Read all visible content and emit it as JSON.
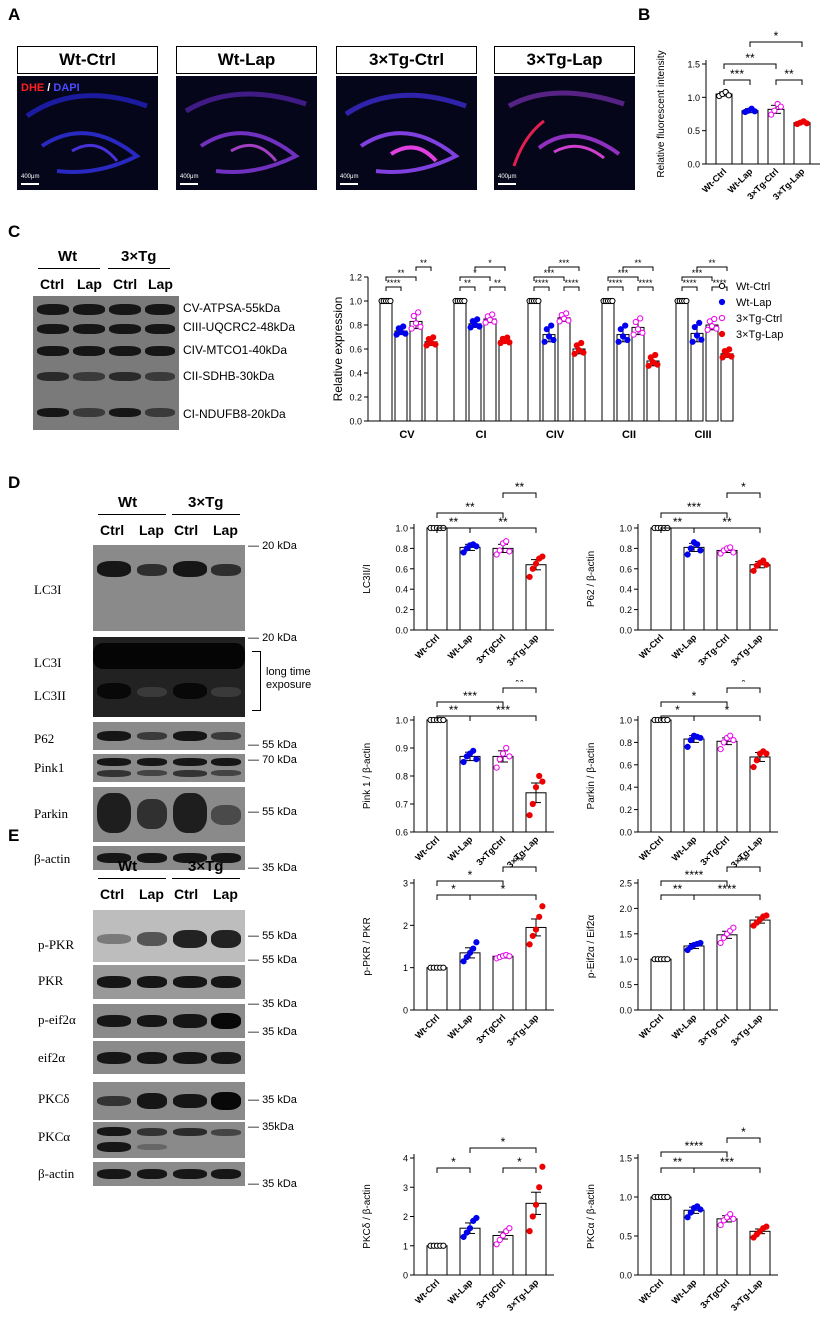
{
  "panel_labels": {
    "A": "A",
    "B": "B",
    "C": "C",
    "D": "D",
    "E": "E"
  },
  "panelA": {
    "titles": [
      "Wt-Ctrl",
      "Wt-Lap",
      "3×Tg-Ctrl",
      "3×Tg-Lap"
    ],
    "stain_dhe": "DHE",
    "stain_sep": " / ",
    "stain_dapi": "DAPI",
    "scale_bar": "400μm"
  },
  "blotC": {
    "groups": [
      "Wt",
      "3×Tg"
    ],
    "lanes": [
      "Ctrl",
      "Lap",
      "Ctrl",
      "Lap"
    ],
    "bands": [
      "CV-ATPSA-55kDa",
      "CIII-UQCRC2-48kDa",
      "CIV-MTCO1-40kDa",
      "CII-SDHB-30kDa",
      "CI-NDUFB8-20kDa"
    ]
  },
  "blotD": {
    "groups": [
      "Wt",
      "3×Tg"
    ],
    "lanes": [
      "Ctrl",
      "Lap",
      "Ctrl",
      "Lap"
    ],
    "rows": [
      "LC3I",
      "LC3I",
      "LC3II",
      "P62",
      "Pink1",
      "Parkin",
      "β-actin"
    ],
    "markers": [
      "20 kDa",
      "20 kDa",
      "55 kDa",
      "70 kDa",
      "55 kDa",
      "35 kDa"
    ],
    "note": "long time exposure"
  },
  "blotE": {
    "groups": [
      "Wt",
      "3×Tg"
    ],
    "lanes": [
      "Ctrl",
      "Lap",
      "Ctrl",
      "Lap"
    ],
    "rows": [
      "p-PKR",
      "PKR",
      "p-eif2α",
      "eif2α",
      "PKCδ",
      "PKCα",
      "β-actin"
    ],
    "markers": [
      "55 kDa",
      "55 kDa",
      "35 kDa",
      "35 kDa",
      "35 kDa",
      "35kDa",
      "35 kDa"
    ]
  },
  "chart_data": [
    {
      "id": "B",
      "type": "bar",
      "categories": [
        "Wt-Ctrl",
        "Wt-Lap",
        "3×Tg-Ctrl",
        "3×Tg-Lap"
      ],
      "values": [
        1.05,
        0.8,
        0.82,
        0.62
      ],
      "errors": [
        0.03,
        0.03,
        0.06,
        0.02
      ],
      "points": [
        [
          1.02,
          1.05,
          1.08,
          1.03
        ],
        [
          0.78,
          0.8,
          0.83,
          0.79
        ],
        [
          0.74,
          0.8,
          0.9,
          0.86
        ],
        [
          0.6,
          0.62,
          0.64,
          0.61
        ]
      ],
      "ylabel": "Relative fluorescent intensity",
      "ylim": [
        0,
        1.5
      ],
      "yticks": [
        0,
        0.5,
        1.0,
        1.5
      ],
      "ytick_labels": [
        "0.0",
        "0.5",
        "1.0",
        "1.5"
      ],
      "sig": [
        {
          "a": 0,
          "b": 1,
          "label": "***"
        },
        {
          "a": 0,
          "b": 2,
          "label": "**"
        },
        {
          "a": 1,
          "b": 3,
          "label": "*"
        },
        {
          "a": 2,
          "b": 3,
          "label": "**"
        }
      ],
      "colors": [
        "#000000",
        "#0000ee",
        "#ee00ee",
        "#ee0000"
      ]
    },
    {
      "id": "C",
      "type": "bar",
      "categories": [
        "CV",
        "CI",
        "CIV",
        "CII",
        "CIII"
      ],
      "series": [
        {
          "name": "Wt-Ctrl",
          "values": [
            1.0,
            1.0,
            1.0,
            1.0,
            1.0
          ],
          "errors": [
            0.0,
            0.0,
            0.0,
            0.0,
            0.0
          ]
        },
        {
          "name": "Wt-Lap",
          "values": [
            0.75,
            0.81,
            0.72,
            0.72,
            0.73
          ],
          "errors": [
            0.03,
            0.03,
            0.06,
            0.06,
            0.07
          ]
        },
        {
          "name": "3×Tg-Ctrl",
          "values": [
            0.83,
            0.85,
            0.86,
            0.78,
            0.8
          ],
          "errors": [
            0.06,
            0.03,
            0.03,
            0.06,
            0.04
          ]
        },
        {
          "name": "3×Tg-Lap",
          "values": [
            0.66,
            0.67,
            0.6,
            0.5,
            0.56
          ],
          "errors": [
            0.03,
            0.02,
            0.04,
            0.04,
            0.03
          ]
        }
      ],
      "ylabel": "Relative expression",
      "ylim": [
        0,
        1.2
      ],
      "yticks": [
        0,
        0.2,
        0.4,
        0.6,
        0.8,
        1.0,
        1.2
      ],
      "ytick_labels": [
        "0.0",
        "0.2",
        "0.4",
        "0.6",
        "0.8",
        "1.0",
        "1.2"
      ],
      "legend": "right",
      "sig": [
        [
          {
            "a": 0,
            "b": 1,
            "label": "****"
          },
          {
            "a": 0,
            "b": 2,
            "label": "**"
          },
          {
            "a": 2,
            "b": 3,
            "label": "**"
          }
        ],
        [
          {
            "a": 0,
            "b": 1,
            "label": "**"
          },
          {
            "a": 0,
            "b": 2,
            "label": "*"
          },
          {
            "a": 1,
            "b": 3,
            "label": "*"
          },
          {
            "a": 2,
            "b": 3,
            "label": "**"
          }
        ],
        [
          {
            "a": 0,
            "b": 1,
            "label": "****"
          },
          {
            "a": 0,
            "b": 2,
            "label": "***"
          },
          {
            "a": 1,
            "b": 3,
            "label": "***"
          },
          {
            "a": 2,
            "b": 3,
            "label": "****"
          }
        ],
        [
          {
            "a": 0,
            "b": 1,
            "label": "****"
          },
          {
            "a": 0,
            "b": 2,
            "label": "***"
          },
          {
            "a": 1,
            "b": 3,
            "label": "**"
          },
          {
            "a": 2,
            "b": 3,
            "label": "****"
          }
        ],
        [
          {
            "a": 0,
            "b": 1,
            "label": "****"
          },
          {
            "a": 0,
            "b": 2,
            "label": "***"
          },
          {
            "a": 1,
            "b": 3,
            "label": "**"
          },
          {
            "a": 2,
            "b": 3,
            "label": "****"
          }
        ]
      ],
      "colors": [
        "#000000",
        "#0000ee",
        "#ee00ee",
        "#ee0000"
      ]
    },
    {
      "id": "D1",
      "type": "bar",
      "categories": [
        "Wt-Ctrl",
        "Wt-Lap",
        "3×TgCtrl",
        "3×Tg-Lap"
      ],
      "values": [
        1.0,
        0.81,
        0.8,
        0.64
      ],
      "errors": [
        0.0,
        0.03,
        0.04,
        0.05
      ],
      "points": [
        [
          1.0,
          1.0,
          1.0,
          1.0,
          1.0
        ],
        [
          0.76,
          0.8,
          0.83,
          0.84,
          0.82
        ],
        [
          0.74,
          0.78,
          0.85,
          0.87,
          0.77
        ],
        [
          0.52,
          0.6,
          0.65,
          0.7,
          0.72
        ]
      ],
      "ylabel": "LC3II/I",
      "ylim": [
        0,
        1.0
      ],
      "yticks": [
        0,
        0.2,
        0.4,
        0.6,
        0.8,
        1.0
      ],
      "ytick_labels": [
        "0.0",
        "0.2",
        "0.4",
        "0.6",
        "0.8",
        "1.0"
      ],
      "sig": [
        {
          "a": 0,
          "b": 1,
          "label": "**"
        },
        {
          "a": 0,
          "b": 2,
          "label": "**"
        },
        {
          "a": 1,
          "b": 3,
          "label": "**"
        },
        {
          "a": 2,
          "b": 3,
          "label": "**"
        }
      ],
      "colors": [
        "#000000",
        "#0000ee",
        "#ee00ee",
        "#ee0000"
      ]
    },
    {
      "id": "D2",
      "type": "bar",
      "categories": [
        "Wt-Ctrl",
        "Wt-Lap",
        "3×Tg-Ctrl",
        "3×Tg-Lap"
      ],
      "values": [
        1.0,
        0.81,
        0.78,
        0.64
      ],
      "errors": [
        0.0,
        0.04,
        0.02,
        0.03
      ],
      "points": [
        [
          1.0,
          1.0,
          1.0,
          1.0,
          1.0
        ],
        [
          0.74,
          0.8,
          0.86,
          0.84,
          0.78
        ],
        [
          0.75,
          0.78,
          0.8,
          0.81,
          0.76
        ],
        [
          0.58,
          0.63,
          0.66,
          0.68,
          0.64
        ]
      ],
      "ylabel": "P62 / β-actin",
      "ylim": [
        0,
        1.0
      ],
      "yticks": [
        0,
        0.2,
        0.4,
        0.6,
        0.8,
        1.0
      ],
      "ytick_labels": [
        "0.0",
        "0.2",
        "0.4",
        "0.6",
        "0.8",
        "1.0"
      ],
      "sig": [
        {
          "a": 0,
          "b": 1,
          "label": "**"
        },
        {
          "a": 0,
          "b": 2,
          "label": "***"
        },
        {
          "a": 1,
          "b": 3,
          "label": "**"
        },
        {
          "a": 2,
          "b": 3,
          "label": "*"
        }
      ],
      "colors": [
        "#000000",
        "#0000ee",
        "#ee00ee",
        "#ee0000"
      ]
    },
    {
      "id": "D3",
      "type": "bar",
      "categories": [
        "Wt-Ctrl",
        "Wt-Lap",
        "3×TgCtrl",
        "3×Tg-Lap"
      ],
      "values": [
        1.0,
        0.87,
        0.87,
        0.74
      ],
      "errors": [
        0.0,
        0.015,
        0.02,
        0.035
      ],
      "points": [
        [
          1.0,
          1.0,
          1.0,
          1.0,
          1.0
        ],
        [
          0.85,
          0.87,
          0.88,
          0.89,
          0.86
        ],
        [
          0.83,
          0.86,
          0.88,
          0.9,
          0.87
        ],
        [
          0.66,
          0.7,
          0.76,
          0.8,
          0.78
        ]
      ],
      "ylabel": "Pink 1 / β-actin",
      "ylim": [
        0.6,
        1.0
      ],
      "yticks": [
        0.6,
        0.7,
        0.8,
        0.9,
        1.0
      ],
      "ytick_labels": [
        "0.6",
        "0.7",
        "0.8",
        "0.9",
        "1.0"
      ],
      "sig": [
        {
          "a": 0,
          "b": 1,
          "label": "**"
        },
        {
          "a": 0,
          "b": 2,
          "label": "***"
        },
        {
          "a": 1,
          "b": 3,
          "label": "***"
        },
        {
          "a": 2,
          "b": 3,
          "label": "**"
        }
      ],
      "colors": [
        "#000000",
        "#0000ee",
        "#ee00ee",
        "#ee0000"
      ]
    },
    {
      "id": "D4",
      "type": "bar",
      "categories": [
        "Wt-Ctrl",
        "Wt-Lap",
        "3×TgCtrl",
        "3×Tg-Lap"
      ],
      "values": [
        1.0,
        0.83,
        0.81,
        0.67
      ],
      "errors": [
        0.0,
        0.03,
        0.03,
        0.04
      ],
      "points": [
        [
          1.0,
          1.0,
          1.0,
          1.0,
          1.0
        ],
        [
          0.76,
          0.82,
          0.86,
          0.85,
          0.84
        ],
        [
          0.74,
          0.8,
          0.84,
          0.86,
          0.82
        ],
        [
          0.58,
          0.64,
          0.7,
          0.72,
          0.7
        ]
      ],
      "ylabel": "Parkin / β-actin",
      "ylim": [
        0,
        1.0
      ],
      "yticks": [
        0,
        0.2,
        0.4,
        0.6,
        0.8,
        1.0
      ],
      "ytick_labels": [
        "0.0",
        "0.2",
        "0.4",
        "0.6",
        "0.8",
        "1.0"
      ],
      "sig": [
        {
          "a": 0,
          "b": 1,
          "label": "*"
        },
        {
          "a": 0,
          "b": 2,
          "label": "*"
        },
        {
          "a": 1,
          "b": 3,
          "label": "*"
        },
        {
          "a": 2,
          "b": 3,
          "label": "*"
        }
      ],
      "colors": [
        "#000000",
        "#0000ee",
        "#ee00ee",
        "#ee0000"
      ]
    },
    {
      "id": "E1",
      "type": "bar",
      "categories": [
        "Wt-Ctrl",
        "Wt-Lap",
        "3×TgCtrl",
        "3×Tg-Lap"
      ],
      "values": [
        1.0,
        1.35,
        1.27,
        1.95
      ],
      "errors": [
        0.0,
        0.12,
        0.04,
        0.2
      ],
      "points": [
        [
          1.0,
          1.0,
          1.0,
          1.0,
          1.0
        ],
        [
          1.15,
          1.25,
          1.35,
          1.45,
          1.6
        ],
        [
          1.22,
          1.25,
          1.28,
          1.3,
          1.27
        ],
        [
          1.55,
          1.75,
          1.9,
          2.2,
          2.45
        ]
      ],
      "ylabel": "p-PKR / PKR",
      "ylim": [
        0,
        3
      ],
      "yticks": [
        0,
        1,
        2,
        3
      ],
      "ytick_labels": [
        "0",
        "1",
        "2",
        "3"
      ],
      "sig": [
        {
          "a": 0,
          "b": 1,
          "label": "*"
        },
        {
          "a": 0,
          "b": 2,
          "label": "*"
        },
        {
          "a": 1,
          "b": 3,
          "label": "*"
        },
        {
          "a": 2,
          "b": 3,
          "label": "**"
        }
      ],
      "colors": [
        "#000000",
        "#0000ee",
        "#ee00ee",
        "#ee0000"
      ]
    },
    {
      "id": "E2",
      "type": "bar",
      "categories": [
        "Wt-Ctrl",
        "Wt-Lap",
        "3×Tg-Ctrl",
        "3×Tg-Lap"
      ],
      "values": [
        1.0,
        1.26,
        1.48,
        1.77
      ],
      "errors": [
        0.0,
        0.05,
        0.07,
        0.06
      ],
      "points": [
        [
          1.0,
          1.0,
          1.0,
          1.0,
          1.0
        ],
        [
          1.18,
          1.24,
          1.28,
          1.3,
          1.32
        ],
        [
          1.32,
          1.42,
          1.5,
          1.56,
          1.62
        ],
        [
          1.66,
          1.72,
          1.78,
          1.84,
          1.86
        ]
      ],
      "ylabel": "p-Eif2α / Eif2α",
      "ylim": [
        0,
        2.5
      ],
      "yticks": [
        0,
        0.5,
        1.0,
        1.5,
        2.0,
        2.5
      ],
      "ytick_labels": [
        "0.0",
        "0.5",
        "1.0",
        "1.5",
        "2.0",
        "2.5"
      ],
      "sig": [
        {
          "a": 0,
          "b": 1,
          "label": "**"
        },
        {
          "a": 0,
          "b": 2,
          "label": "****"
        },
        {
          "a": 1,
          "b": 3,
          "label": "****"
        },
        {
          "a": 2,
          "b": 3,
          "label": "**"
        }
      ],
      "colors": [
        "#000000",
        "#0000ee",
        "#ee00ee",
        "#ee0000"
      ]
    },
    {
      "id": "E3",
      "type": "bar",
      "categories": [
        "Wt-Ctrl",
        "Wt-Lap",
        "3×TgCtrl",
        "3×Tg-Lap"
      ],
      "values": [
        1.0,
        1.6,
        1.35,
        2.45
      ],
      "errors": [
        0.0,
        0.18,
        0.12,
        0.38
      ],
      "points": [
        [
          1.0,
          1.0,
          1.0,
          1.0,
          1.0
        ],
        [
          1.3,
          1.45,
          1.6,
          1.85,
          1.95
        ],
        [
          1.05,
          1.2,
          1.35,
          1.5,
          1.6
        ],
        [
          1.5,
          2.0,
          2.4,
          3.0,
          3.7
        ]
      ],
      "ylabel": "PKCδ / β-actin",
      "ylim": [
        0,
        4
      ],
      "yticks": [
        0,
        1,
        2,
        3,
        4
      ],
      "ytick_labels": [
        "0",
        "1",
        "2",
        "3",
        "4"
      ],
      "sig": [
        {
          "a": 0,
          "b": 1,
          "label": "*"
        },
        {
          "a": 1,
          "b": 3,
          "label": "*"
        },
        {
          "a": 2,
          "b": 3,
          "label": "*"
        }
      ],
      "colors": [
        "#000000",
        "#0000ee",
        "#ee00ee",
        "#ee0000"
      ]
    },
    {
      "id": "E4",
      "type": "bar",
      "categories": [
        "Wt-Ctrl",
        "Wt-Lap",
        "3×TgCtrl",
        "3×Tg-Lap"
      ],
      "values": [
        1.0,
        0.83,
        0.72,
        0.56
      ],
      "errors": [
        0.0,
        0.04,
        0.04,
        0.03
      ],
      "points": [
        [
          1.0,
          1.0,
          1.0,
          1.0,
          1.0
        ],
        [
          0.74,
          0.8,
          0.86,
          0.88,
          0.84
        ],
        [
          0.64,
          0.7,
          0.74,
          0.78,
          0.72
        ],
        [
          0.48,
          0.52,
          0.56,
          0.6,
          0.62
        ]
      ],
      "ylabel": "PKCα / β-actin",
      "ylim": [
        0,
        1.5
      ],
      "yticks": [
        0,
        0.5,
        1.0,
        1.5
      ],
      "ytick_labels": [
        "0.0",
        "0.5",
        "1.0",
        "1.5"
      ],
      "sig": [
        {
          "a": 0,
          "b": 1,
          "label": "**"
        },
        {
          "a": 0,
          "b": 2,
          "label": "****"
        },
        {
          "a": 1,
          "b": 3,
          "label": "***"
        },
        {
          "a": 2,
          "b": 3,
          "label": "*"
        }
      ],
      "colors": [
        "#000000",
        "#0000ee",
        "#ee00ee",
        "#ee0000"
      ]
    }
  ]
}
